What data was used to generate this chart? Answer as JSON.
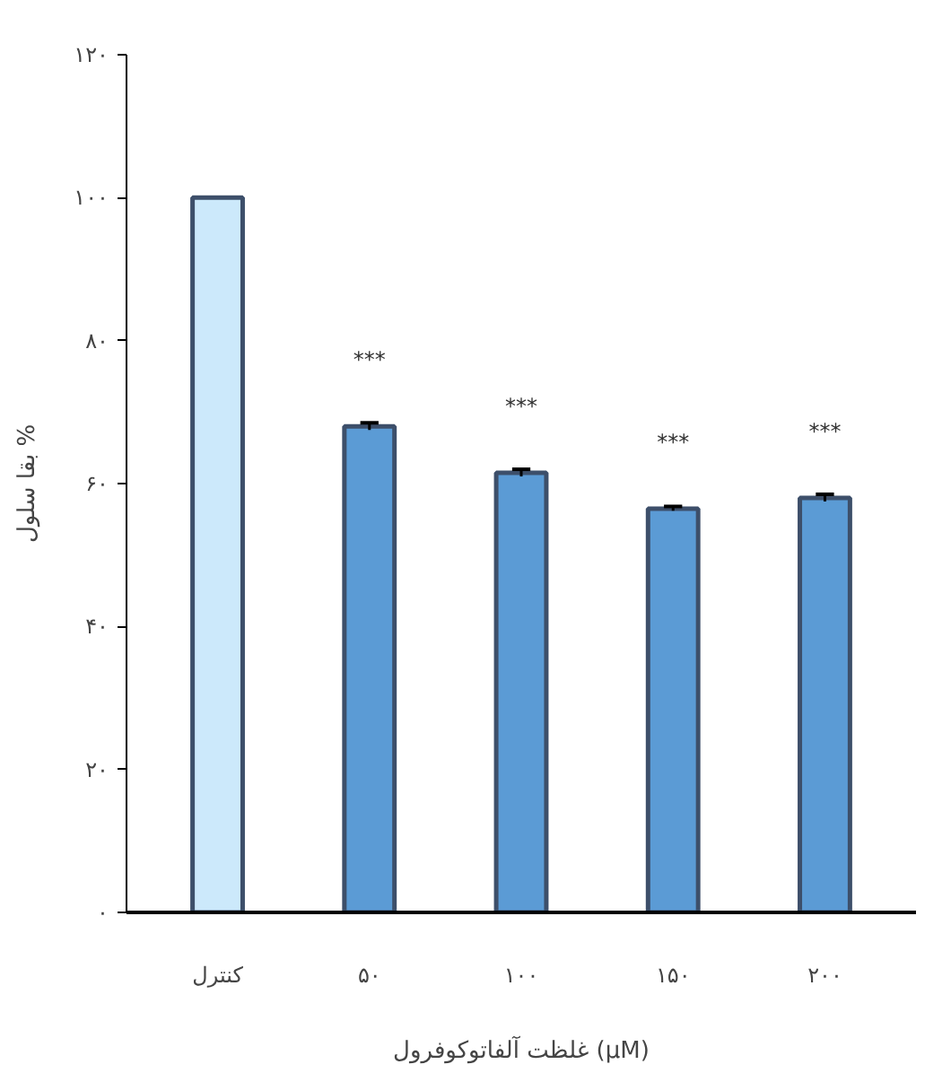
{
  "chart_data": {
    "type": "bar",
    "xlabel": "غلظت آلفاتوکوفرول (µM)",
    "ylabel": "بقا سلول %",
    "categories": [
      "کنترل",
      "۵۰",
      "۱۰۰",
      "۱۵۰",
      "۲۰۰"
    ],
    "values": [
      100,
      68,
      61.5,
      56.5,
      58
    ],
    "errors": [
      null,
      0.5,
      0.5,
      0.3,
      0.5
    ],
    "colors": [
      "#cce9fb",
      "#5b9bd5",
      "#5b9bd5",
      "#5b9bd5",
      "#5b9bd5"
    ],
    "ylim": [
      0,
      120
    ],
    "yticks": [
      {
        "value": 0,
        "label": "۰"
      },
      {
        "value": 20,
        "label": "۲۰"
      },
      {
        "value": 40,
        "label": "۴۰"
      },
      {
        "value": 60,
        "label": "۶۰"
      },
      {
        "value": 80,
        "label": "۸۰"
      },
      {
        "value": 100,
        "label": "۱۰۰"
      },
      {
        "value": 120,
        "label": "۱۲۰"
      }
    ],
    "annotations": [
      "***",
      "***",
      "***",
      "***"
    ],
    "grid": false
  }
}
